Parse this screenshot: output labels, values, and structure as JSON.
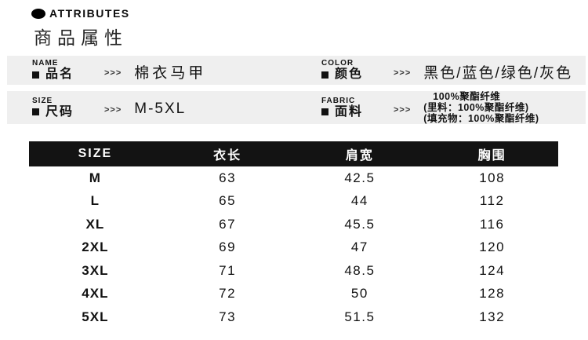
{
  "header": {
    "eyebrow": "ATTRIBUTES",
    "title": "商品属性"
  },
  "attributes": [
    {
      "label_en": "NAME",
      "label_zh": "品名",
      "arrows": ">>>",
      "value": "棉衣马甲"
    },
    {
      "label_en": "COLOR",
      "label_zh": "颜色",
      "arrows": ">>>",
      "value": "黑色/蓝色/绿色/灰色"
    },
    {
      "label_en": "SIZE",
      "label_zh": "尺码",
      "arrows": ">>>",
      "value": "M-5XL"
    },
    {
      "label_en": "FABRIC",
      "label_zh": "面料",
      "arrows": ">>>",
      "value_lines": [
        "100%聚酯纤维",
        "(里料：100%聚酯纤维)",
        "(填充物：100%聚酯纤维)"
      ]
    }
  ],
  "size_table": {
    "headers": [
      "SIZE",
      "衣长",
      "肩宽",
      "胸围"
    ],
    "rows": [
      [
        "M",
        "63",
        "42.5",
        "108"
      ],
      [
        "L",
        "65",
        "44",
        "112"
      ],
      [
        "XL",
        "67",
        "45.5",
        "116"
      ],
      [
        "2XL",
        "69",
        "47",
        "120"
      ],
      [
        "3XL",
        "71",
        "48.5",
        "124"
      ],
      [
        "4XL",
        "72",
        "50",
        "128"
      ],
      [
        "5XL",
        "73",
        "51.5",
        "132"
      ]
    ]
  },
  "colors": {
    "band_bg": "#efefef",
    "table_header_bg": "#131313",
    "table_header_text": "#ffffff",
    "body_text": "#1a1a1a",
    "accent": "#000000"
  }
}
